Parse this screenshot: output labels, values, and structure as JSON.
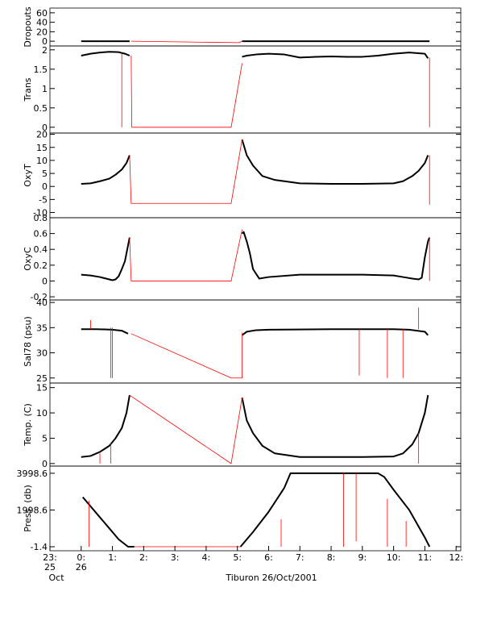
{
  "chart_data": [
    {
      "type": "line",
      "ylabel": "Dropouts",
      "ylim": [
        -10,
        70
      ],
      "yticks": [
        0,
        20,
        40,
        60
      ],
      "series": [
        {
          "color": "#000000",
          "x": [
            0,
            0.5,
            1.0,
            1.55,
            3,
            5.15,
            7,
            9,
            11.15
          ],
          "values": [
            0,
            0,
            0,
            0,
            null,
            0,
            0,
            0,
            0
          ]
        },
        {
          "color": "#ff0000",
          "x": [
            1.6,
            5.05,
            5.15
          ],
          "values": [
            0,
            -3,
            0
          ]
        }
      ]
    },
    {
      "type": "line",
      "ylabel": "Trans",
      "ylim": [
        -0.15,
        2.1
      ],
      "yticks": [
        0.0,
        0.5,
        1.0,
        1.5,
        2.0
      ],
      "series": [
        {
          "color": "#000000",
          "x": [
            0,
            0.3,
            0.6,
            0.9,
            1.2,
            1.4,
            1.55,
            3,
            5.15,
            5.3,
            5.6,
            6,
            6.5,
            7,
            7.5,
            8,
            8.5,
            9,
            9.5,
            10,
            10.5,
            11,
            11.1
          ],
          "values": [
            1.85,
            1.9,
            1.93,
            1.95,
            1.94,
            1.9,
            1.85,
            null,
            1.82,
            1.85,
            1.88,
            1.9,
            1.88,
            1.8,
            1.82,
            1.83,
            1.82,
            1.82,
            1.85,
            1.9,
            1.93,
            1.9,
            1.78
          ]
        },
        {
          "color": "#ff0000",
          "x": [
            1.3,
            1.3,
            1.3,
            1.6,
            1.62,
            4.8,
            5.15,
            5.15,
            11.15,
            11.15
          ],
          "values": [
            1.9,
            0,
            null,
            1.85,
            0,
            0,
            1.65,
            null,
            1.8,
            0
          ]
        }
      ]
    },
    {
      "type": "line",
      "ylabel": "OxyT",
      "ylim": [
        -12,
        20.5
      ],
      "yticks": [
        -10,
        -5,
        0,
        5,
        10,
        15,
        20
      ],
      "series": [
        {
          "color": "#000000",
          "x": [
            0,
            0.3,
            0.6,
            0.9,
            1.1,
            1.3,
            1.45,
            1.55,
            3,
            5.15,
            5.2,
            5.3,
            5.5,
            5.8,
            6.2,
            7,
            8,
            9,
            10,
            10.3,
            10.6,
            10.8,
            11,
            11.1
          ],
          "values": [
            1,
            1.2,
            2,
            3,
            4.5,
            6.5,
            9,
            12,
            null,
            18,
            16,
            12,
            8,
            4,
            2.5,
            1.2,
            1,
            1,
            1.2,
            2,
            4,
            6,
            9,
            12
          ]
        },
        {
          "color": "#ff0000",
          "x": [
            1.55,
            1.6,
            4.8,
            5.15,
            5.15,
            11.15,
            11.15
          ],
          "values": [
            12,
            -6.5,
            -6.5,
            18,
            null,
            12,
            -7
          ]
        }
      ]
    },
    {
      "type": "line",
      "ylabel": "OxyC",
      "ylim": [
        -0.24,
        0.8
      ],
      "yticks": [
        -0.2,
        0.0,
        0.2,
        0.4,
        0.6,
        0.8
      ],
      "series": [
        {
          "color": "#000000",
          "x": [
            0,
            0.3,
            0.6,
            0.9,
            1.0,
            1.1,
            1.2,
            1.3,
            1.4,
            1.5,
            1.55,
            3,
            5.15,
            5.2,
            5.3,
            5.4,
            5.5,
            5.7,
            6,
            7,
            8,
            9,
            10,
            10.3,
            10.6,
            10.8,
            10.9,
            11,
            11.1,
            11.15
          ],
          "values": [
            0.08,
            0.07,
            0.05,
            0.02,
            0.01,
            0.02,
            0.06,
            0.15,
            0.25,
            0.45,
            0.55,
            null,
            0.6,
            0.62,
            0.5,
            0.35,
            0.15,
            0.03,
            0.05,
            0.08,
            0.08,
            0.08,
            0.07,
            0.05,
            0.03,
            0.02,
            0.04,
            0.3,
            0.5,
            0.55
          ]
        },
        {
          "color": "#ff0000",
          "x": [
            1.55,
            1.6,
            4.8,
            5.15,
            5.15,
            11.15,
            11.15
          ],
          "values": [
            0.55,
            0,
            0,
            0.65,
            null,
            0.55,
            0
          ]
        }
      ]
    },
    {
      "type": "line",
      "ylabel": "Sal78 (psu)",
      "ylim": [
        24,
        40.5
      ],
      "yticks": [
        25,
        30,
        35,
        40
      ],
      "series": [
        {
          "color": "#000000",
          "x": [
            0,
            0.5,
            1.0,
            1.3,
            1.5,
            3,
            5.15,
            5.3,
            5.6,
            6,
            8,
            10,
            10.5,
            11,
            11.1
          ],
          "values": [
            34.7,
            34.7,
            34.6,
            34.4,
            33.8,
            null,
            33.5,
            34.2,
            34.5,
            34.6,
            34.7,
            34.7,
            34.6,
            34.2,
            33.5
          ]
        },
        {
          "color": "#ff0000",
          "x": [
            1.6,
            4.8,
            5.15,
            5.15,
            5.15,
            0.3,
            0.3,
            0.3,
            0.95,
            0.95,
            0.95,
            1.0,
            1.0,
            1.0,
            8.9,
            8.9,
            8.9,
            9.8,
            9.8,
            9.8,
            10.3,
            10.3,
            10.3,
            10.8,
            10.8
          ],
          "values": [
            33.8,
            25,
            25,
            34,
            null,
            36.5,
            34.7,
            null,
            25,
            35,
            null,
            25,
            35,
            null,
            34.7,
            25.5,
            null,
            34.7,
            25,
            null,
            34.7,
            25,
            null,
            39,
            34.7
          ]
        }
      ]
    },
    {
      "type": "line",
      "ylabel": "Temp. (C)",
      "ylim": [
        -0.5,
        15.9
      ],
      "yticks": [
        0,
        5,
        10,
        15
      ],
      "series": [
        {
          "color": "#000000",
          "x": [
            0,
            0.3,
            0.6,
            0.9,
            1.1,
            1.3,
            1.45,
            1.55,
            3,
            5.15,
            5.2,
            5.3,
            5.5,
            5.8,
            6.2,
            7,
            8,
            9,
            10,
            10.3,
            10.6,
            10.8,
            11,
            11.1
          ],
          "values": [
            1.3,
            1.5,
            2.3,
            3.5,
            5,
            7,
            10,
            13.5,
            null,
            13,
            11.5,
            8.5,
            6,
            3.5,
            2,
            1.3,
            1.3,
            1.3,
            1.4,
            2,
            3.8,
            6,
            10,
            13.5
          ]
        },
        {
          "color": "#ff0000",
          "x": [
            1.55,
            4.8,
            5.15,
            5.15,
            0.6,
            0.6,
            0.6,
            0.95,
            0.95,
            0.95,
            10.8,
            10.8
          ],
          "values": [
            13.5,
            0,
            13,
            null,
            2,
            0,
            null,
            4,
            0,
            null,
            6,
            0
          ]
        }
      ]
    },
    {
      "type": "line",
      "ylabel": "Press. (db)",
      "ylim": [
        -220,
        4390
      ],
      "yticks": [
        -1.4,
        1998.6,
        3998.6
      ],
      "xlim": [
        -1,
        12.15
      ],
      "xticks": [
        {
          "value": -1,
          "label": "23:"
        },
        {
          "value": 0,
          "label": "0:"
        },
        {
          "value": 1,
          "label": "1:"
        },
        {
          "value": 2,
          "label": "2:"
        },
        {
          "value": 3,
          "label": "3:"
        },
        {
          "value": 4,
          "label": "4:"
        },
        {
          "value": 5,
          "label": "5:"
        },
        {
          "value": 6,
          "label": "6:"
        },
        {
          "value": 7,
          "label": "7:"
        },
        {
          "value": 8,
          "label": "8:"
        },
        {
          "value": 9,
          "label": "9:"
        },
        {
          "value": 10,
          "label": "10:"
        },
        {
          "value": 11,
          "label": "11:"
        },
        {
          "value": 12,
          "label": "12:"
        }
      ],
      "x_sublabels": [
        {
          "value": -1,
          "label": "25"
        },
        {
          "value": 0,
          "label": "26"
        }
      ],
      "x_month": {
        "value": -1,
        "label": "Oct"
      },
      "xlabel": "Tiburon 26/Oct/2001",
      "series": [
        {
          "color": "#000000",
          "x": [
            0.05,
            0.3,
            0.6,
            0.9,
            1.2,
            1.5,
            1.7,
            3,
            5.1,
            5.5,
            6,
            6.5,
            6.7,
            7,
            8,
            9,
            9.5,
            9.7,
            10,
            10.5,
            11,
            11.15
          ],
          "values": [
            2700,
            2200,
            1600,
            1000,
            400,
            0,
            -1.4,
            null,
            0,
            800,
            1900,
            3200,
            3998.6,
            3998.6,
            3998.6,
            3998.6,
            3998.6,
            3800,
            3100,
            2000,
            500,
            0
          ]
        },
        {
          "color": "#ff0000",
          "x": [
            1.7,
            5.1,
            5.1,
            0.25,
            0.25,
            0.25,
            6.4,
            6.4,
            6.4,
            8.4,
            8.4,
            8.4,
            8.8,
            8.8,
            8.8,
            9.8,
            9.8,
            9.8,
            10.4,
            10.4
          ],
          "values": [
            -1.4,
            0,
            null,
            2500,
            0,
            null,
            1500,
            0,
            null,
            3998.6,
            0,
            null,
            3998.6,
            300,
            null,
            2600,
            0,
            null,
            1400,
            0
          ]
        }
      ]
    }
  ]
}
